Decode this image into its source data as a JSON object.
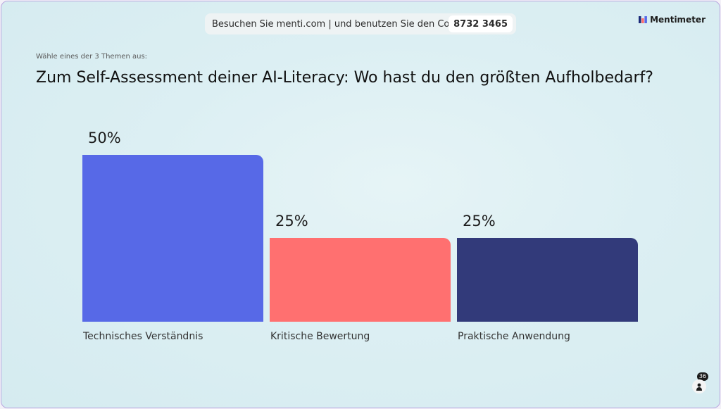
{
  "join": {
    "text": "Besuchen Sie menti.com | und benutzen Sie den Code",
    "code": "8732 3465"
  },
  "brand": {
    "name": "Mentimeter"
  },
  "slide": {
    "subtitle": "Wähle eines der 3 Themen aus:",
    "question": "Zum Self-Assessment deiner AI-Literacy: Wo hast du den größten Aufholbedarf?"
  },
  "chart_data": {
    "type": "bar",
    "title": "Zum Self-Assessment deiner AI-Literacy: Wo hast du den größten Aufholbedarf?",
    "categories": [
      "Technisches Verständnis",
      "Kritische Bewertung",
      "Praktische Anwendung"
    ],
    "values": [
      50,
      25,
      25
    ],
    "value_labels": [
      "50%",
      "25%",
      "25%"
    ],
    "unit": "%",
    "ylim": [
      0,
      50
    ],
    "colors": [
      "#5769e7",
      "#ff7070",
      "#323a7a"
    ],
    "grid": false
  },
  "participants": {
    "count": "36",
    "icon": "person-icon"
  }
}
